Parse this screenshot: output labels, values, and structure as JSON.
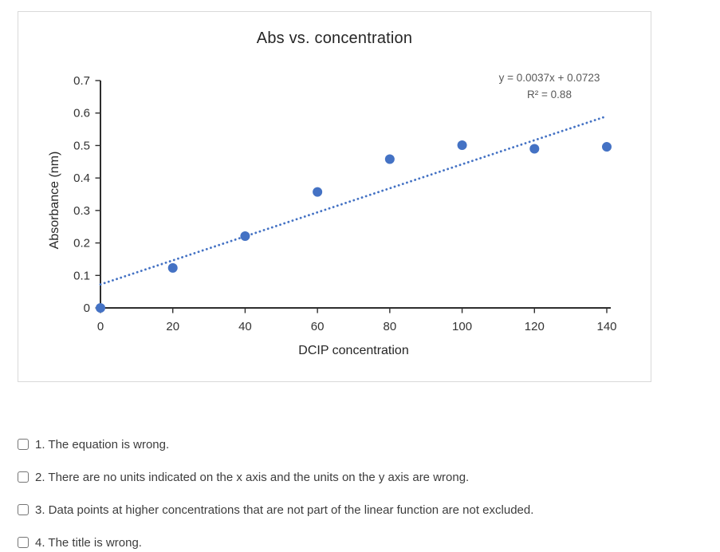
{
  "chart_data": {
    "type": "scatter",
    "title": "Abs vs. concentration",
    "xlabel": "DCIP concentration",
    "ylabel": "Absorbance (nm)",
    "x": [
      0,
      20,
      40,
      60,
      80,
      100,
      120,
      140
    ],
    "y": [
      0,
      0.123,
      0.221,
      0.357,
      0.458,
      0.501,
      0.49,
      0.496
    ],
    "xlim": [
      0,
      140
    ],
    "ylim": [
      0,
      0.7
    ],
    "xticks": [
      0,
      20,
      40,
      60,
      80,
      100,
      120,
      140
    ],
    "yticks": [
      0,
      0.1,
      0.2,
      0.3,
      0.4,
      0.5,
      0.6,
      0.7
    ],
    "xtick_labels": [
      "0",
      "20",
      "40",
      "60",
      "80",
      "100",
      "120",
      "140"
    ],
    "ytick_labels": [
      "0",
      "0.1",
      "0.2",
      "0.3",
      "0.4",
      "0.5",
      "0.6",
      "0.7"
    ],
    "grid": false,
    "legend": false,
    "point_color": "#4472C4",
    "axis_color": "#2e2e2e",
    "tick_label_color": "#333333",
    "trendline": {
      "style": "dotted",
      "slope": 0.0037,
      "intercept": 0.0723,
      "x_range": [
        0,
        140
      ],
      "equation": "y = 0.0037x + 0.0723",
      "r_squared_label": "R² = 0.88"
    }
  },
  "questions": {
    "items": [
      {
        "label": "1. The equation is wrong.",
        "checked": false
      },
      {
        "label": "2. There are no units indicated on the x axis and the units on the y axis are wrong.",
        "checked": false
      },
      {
        "label": "3. Data points at higher concentrations that are not part of the linear function are not excluded.",
        "checked": false
      },
      {
        "label": "4. The title is wrong.",
        "checked": false
      }
    ]
  }
}
